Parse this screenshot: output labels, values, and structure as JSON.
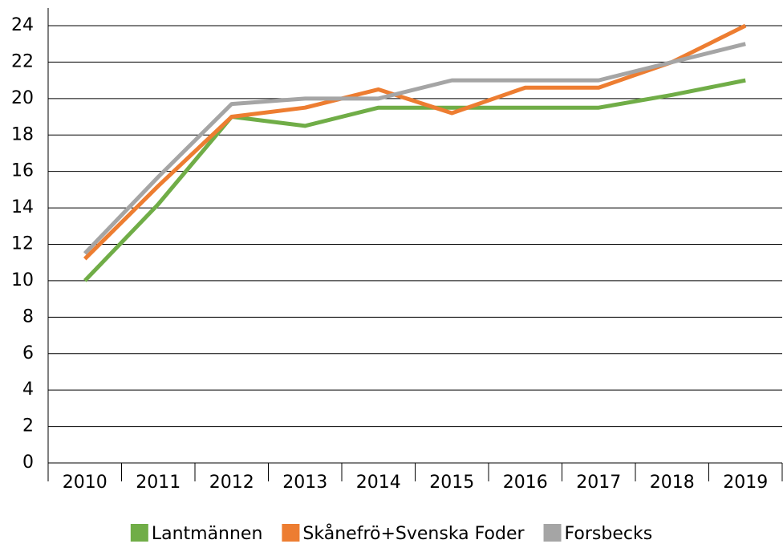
{
  "chart_data": {
    "type": "line",
    "categories": [
      "2010",
      "2011",
      "2012",
      "2013",
      "2014",
      "2015",
      "2016",
      "2017",
      "2018",
      "2019"
    ],
    "series": [
      {
        "name": "Lantmännen",
        "color": "#70ad47",
        "values": [
          10,
          14.2,
          19,
          18.5,
          19.5,
          19.5,
          19.5,
          19.5,
          20.2,
          21
        ]
      },
      {
        "name": "Skånefrö+Svenska Foder",
        "color": "#ed7d31",
        "values": [
          11.2,
          15.2,
          19,
          19.5,
          20.5,
          19.2,
          20.6,
          20.6,
          22,
          24
        ]
      },
      {
        "name": "Forsbecks",
        "color": "#a5a5a5",
        "values": [
          11.5,
          15.7,
          19.7,
          20,
          20,
          21,
          21,
          21,
          22,
          23
        ]
      }
    ],
    "ylim": [
      0,
      24
    ],
    "yticks": [
      0,
      2,
      4,
      6,
      8,
      10,
      12,
      14,
      16,
      18,
      20,
      22,
      24
    ],
    "grid": true,
    "legend": "bottom"
  }
}
